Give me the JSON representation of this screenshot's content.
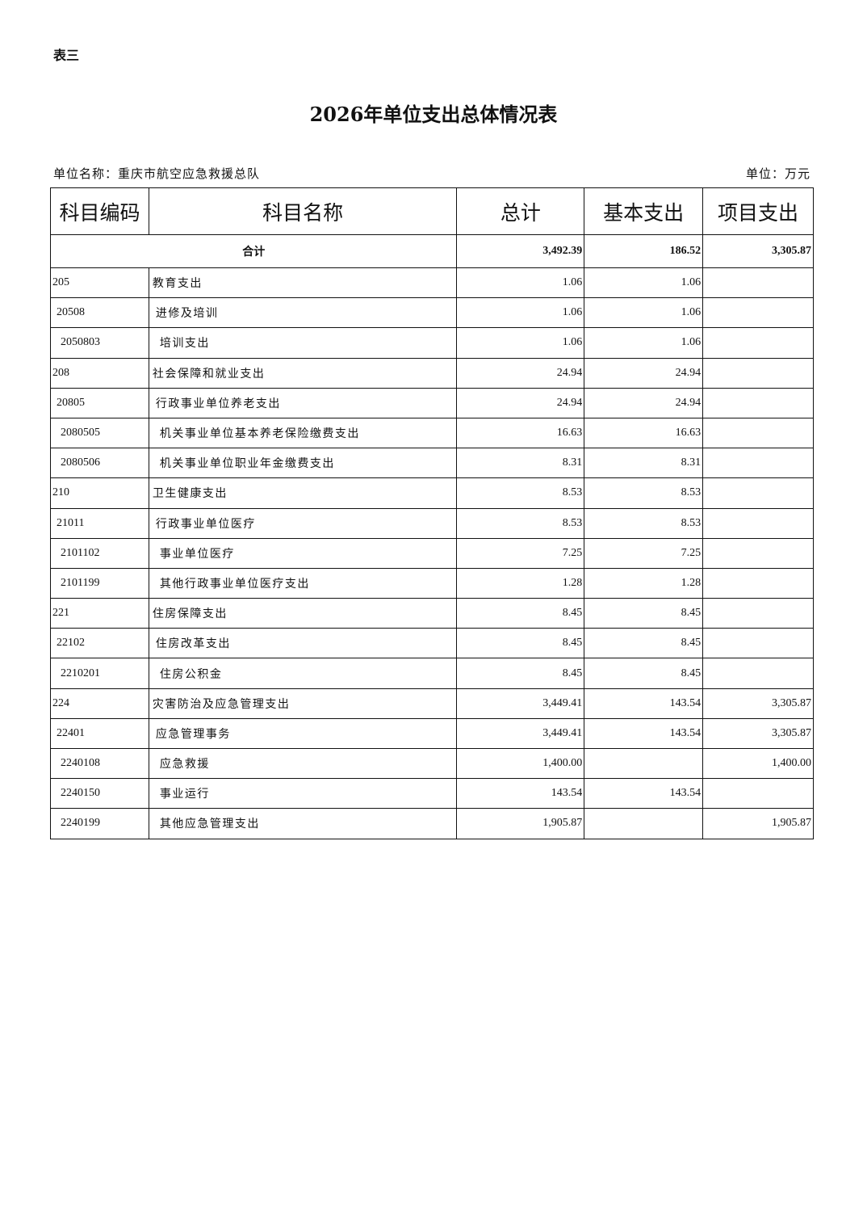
{
  "tag": "表三",
  "title": "2026年单位支出总体情况表",
  "unit_name": "单位名称：重庆市航空应急救援总队",
  "unit": "单位：万元",
  "headers": [
    "科目编码",
    "科目名称",
    "总计",
    "基本支出",
    "项目支出"
  ],
  "total": {
    "label": "合计",
    "total": "3,492.39",
    "basic": "186.52",
    "project": "3,305.87"
  },
  "rows": [
    {
      "level": 1,
      "code": "205",
      "name": "教育支出",
      "total": "1.06",
      "basic": "1.06",
      "project": ""
    },
    {
      "level": 2,
      "code": "20508",
      "name": "进修及培训",
      "total": "1.06",
      "basic": "1.06",
      "project": ""
    },
    {
      "level": 3,
      "code": "2050803",
      "name": "培训支出",
      "total": "1.06",
      "basic": "1.06",
      "project": ""
    },
    {
      "level": 1,
      "code": "208",
      "name": "社会保障和就业支出",
      "total": "24.94",
      "basic": "24.94",
      "project": ""
    },
    {
      "level": 2,
      "code": "20805",
      "name": "行政事业单位养老支出",
      "total": "24.94",
      "basic": "24.94",
      "project": ""
    },
    {
      "level": 3,
      "code": "2080505",
      "name": "机关事业单位基本养老保险缴费支出",
      "total": "16.63",
      "basic": "16.63",
      "project": ""
    },
    {
      "level": 3,
      "code": "2080506",
      "name": "机关事业单位职业年金缴费支出",
      "total": "8.31",
      "basic": "8.31",
      "project": ""
    },
    {
      "level": 1,
      "code": "210",
      "name": "卫生健康支出",
      "total": "8.53",
      "basic": "8.53",
      "project": ""
    },
    {
      "level": 2,
      "code": "21011",
      "name": "行政事业单位医疗",
      "total": "8.53",
      "basic": "8.53",
      "project": ""
    },
    {
      "level": 3,
      "code": "2101102",
      "name": "事业单位医疗",
      "total": "7.25",
      "basic": "7.25",
      "project": ""
    },
    {
      "level": 3,
      "code": "2101199",
      "name": "其他行政事业单位医疗支出",
      "total": "1.28",
      "basic": "1.28",
      "project": ""
    },
    {
      "level": 1,
      "code": "221",
      "name": "住房保障支出",
      "total": "8.45",
      "basic": "8.45",
      "project": ""
    },
    {
      "level": 2,
      "code": "22102",
      "name": "住房改革支出",
      "total": "8.45",
      "basic": "8.45",
      "project": ""
    },
    {
      "level": 3,
      "code": "2210201",
      "name": "住房公积金",
      "total": "8.45",
      "basic": "8.45",
      "project": ""
    },
    {
      "level": 1,
      "code": "224",
      "name": "灾害防治及应急管理支出",
      "total": "3,449.41",
      "basic": "143.54",
      "project": "3,305.87"
    },
    {
      "level": 2,
      "code": "22401",
      "name": "应急管理事务",
      "total": "3,449.41",
      "basic": "143.54",
      "project": "3,305.87"
    },
    {
      "level": 3,
      "code": "2240108",
      "name": "应急救援",
      "total": "1,400.00",
      "basic": "",
      "project": "1,400.00"
    },
    {
      "level": 3,
      "code": "2240150",
      "name": "事业运行",
      "total": "143.54",
      "basic": "143.54",
      "project": ""
    },
    {
      "level": 3,
      "code": "2240199",
      "name": "其他应急管理支出",
      "total": "1,905.87",
      "basic": "",
      "project": "1,905.87"
    }
  ]
}
